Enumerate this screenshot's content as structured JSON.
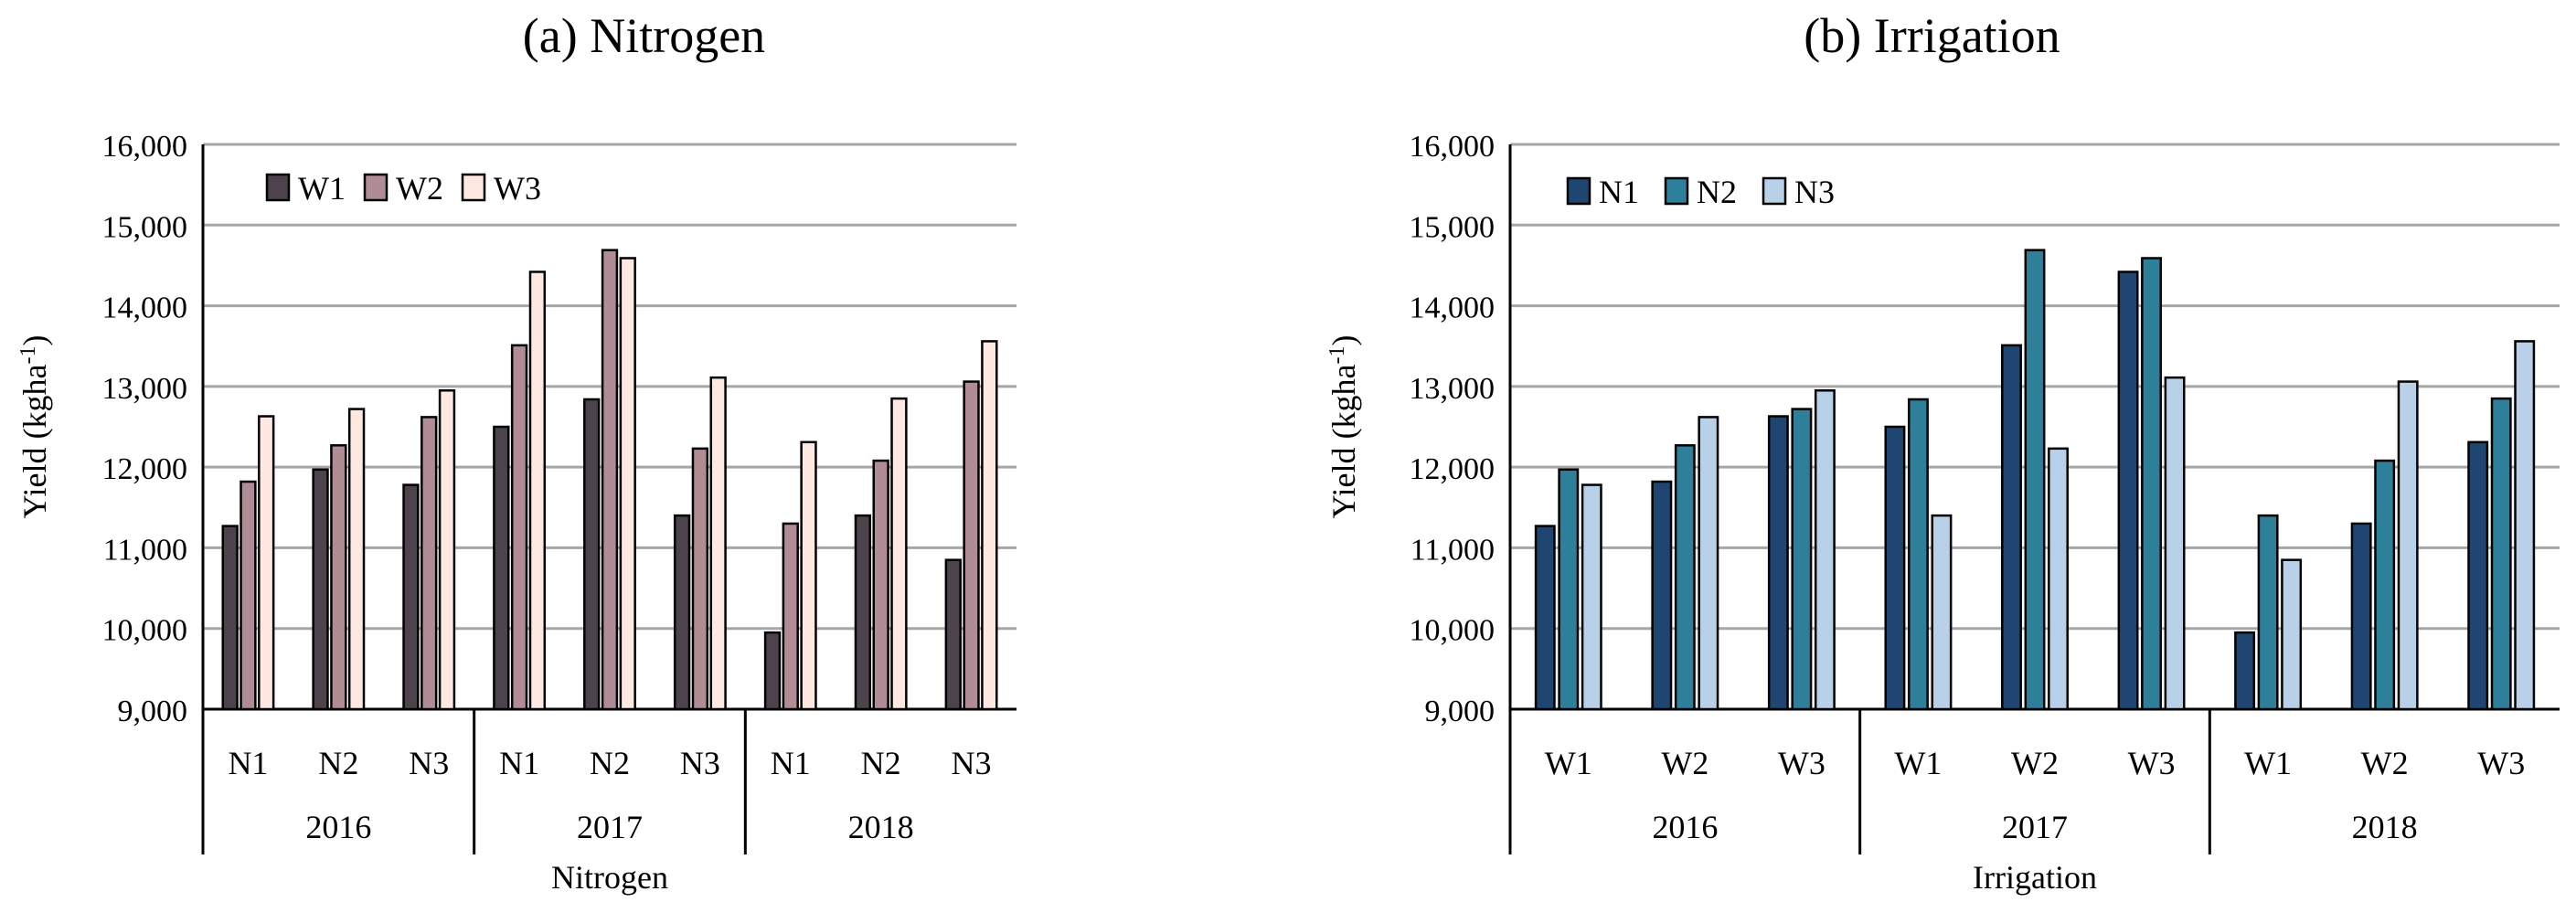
{
  "chart_data": [
    {
      "type": "bar",
      "title": "(a) Nitrogen",
      "xlabel": "Nitrogen",
      "ylabel": "Yield (kgha",
      "ylabel_sup": "-1",
      "ylabel_close": ")",
      "ylim": [
        9000,
        16000
      ],
      "yticks": [
        "9,000",
        "10,000",
        "11,000",
        "12,000",
        "13,000",
        "14,000",
        "15,000",
        "16,000"
      ],
      "grid": true,
      "legend_position": "top-left",
      "groups": [
        "2016",
        "2017",
        "2018"
      ],
      "categories": [
        "N1",
        "N2",
        "N3",
        "N1",
        "N2",
        "N3",
        "N1",
        "N2",
        "N3"
      ],
      "series": [
        {
          "name": "W1",
          "color": "#4d434c",
          "values": [
            11270,
            11970,
            11780,
            12500,
            12840,
            11400,
            9950,
            11400,
            10850
          ]
        },
        {
          "name": "W2",
          "color": "#b08c95",
          "values": [
            11820,
            12270,
            12620,
            13510,
            14690,
            12230,
            11300,
            12080,
            13060
          ]
        },
        {
          "name": "W3",
          "color": "#fde8e2",
          "values": [
            12630,
            12720,
            12950,
            14420,
            14590,
            13110,
            12310,
            12850,
            13560
          ]
        }
      ]
    },
    {
      "type": "bar",
      "title": "(b) Irrigation",
      "xlabel": "Irrigation",
      "ylabel": "Yield (kgha",
      "ylabel_sup": "-1",
      "ylabel_close": ")",
      "ylim": [
        9000,
        16000
      ],
      "yticks": [
        "9,000",
        "10,000",
        "11,000",
        "12,000",
        "13,000",
        "14,000",
        "15,000",
        "16,000"
      ],
      "grid": true,
      "legend_position": "top-left",
      "groups": [
        "2016",
        "2017",
        "2018"
      ],
      "categories": [
        "W1",
        "W2",
        "W3",
        "W1",
        "W2",
        "W3",
        "W1",
        "W2",
        "W3"
      ],
      "series": [
        {
          "name": "N1",
          "color": "#1f4670",
          "values": [
            11270,
            11820,
            12630,
            12500,
            13510,
            14420,
            9950,
            11300,
            12310
          ]
        },
        {
          "name": "N2",
          "color": "#2e7f9a",
          "values": [
            11970,
            12270,
            12720,
            12840,
            14690,
            14590,
            11400,
            12080,
            12850
          ]
        },
        {
          "name": "N3",
          "color": "#b9d1e8",
          "values": [
            11780,
            12620,
            12950,
            11400,
            12230,
            13110,
            10850,
            13060,
            13560
          ]
        }
      ]
    }
  ]
}
